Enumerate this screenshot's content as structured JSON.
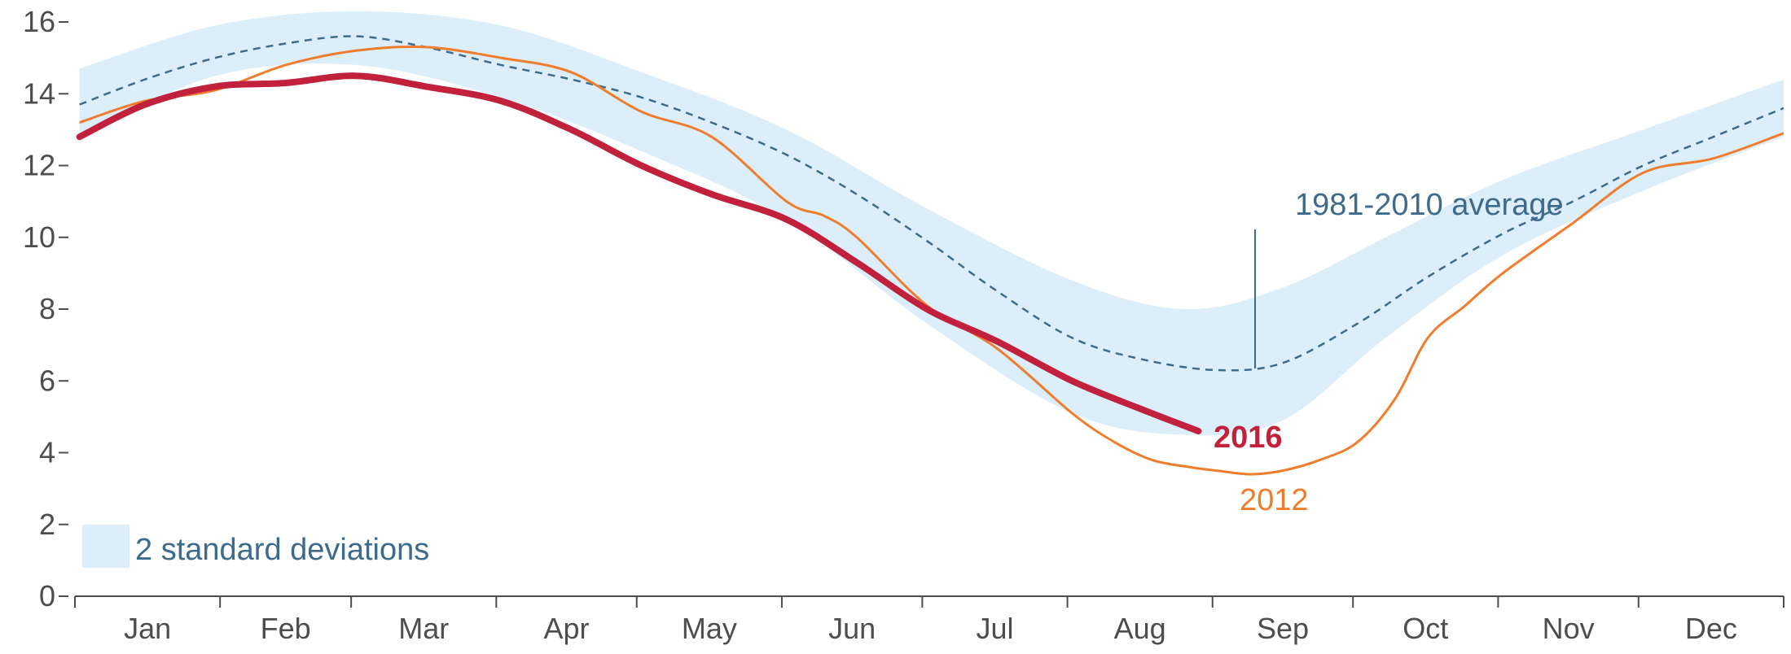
{
  "chart_data": {
    "type": "line",
    "title": "",
    "xlabel": "",
    "ylabel": "",
    "ylim": [
      0,
      16
    ],
    "yticks": [
      0,
      2,
      4,
      6,
      8,
      10,
      12,
      14,
      16
    ],
    "months": [
      "Jan",
      "Feb",
      "Mar",
      "Apr",
      "May",
      "Jun",
      "Jul",
      "Aug",
      "Sep",
      "Oct",
      "Nov",
      "Dec"
    ],
    "grid": false,
    "colors": {
      "series_2016": "#c1213c",
      "series_2012": "#ef7d2d",
      "average": "#3d6b8c",
      "band": "#dbeefa",
      "axis": "#4d4d4d"
    },
    "band_label": "2 standard deviations",
    "band": {
      "x": [
        1,
        30,
        60,
        91,
        121,
        152,
        182,
        213,
        237,
        258,
        280,
        305,
        335,
        365
      ],
      "upper": [
        14.7,
        15.9,
        16.3,
        15.9,
        14.6,
        13.0,
        10.8,
        8.8,
        8.0,
        8.6,
        10.0,
        11.6,
        13.0,
        14.4
      ],
      "lower": [
        12.8,
        14.5,
        14.8,
        13.9,
        12.4,
        10.5,
        7.6,
        5.1,
        4.5,
        4.9,
        7.2,
        9.5,
        11.3,
        12.8
      ]
    },
    "series": [
      {
        "name": "1981-2010 average",
        "style": "dashed",
        "x": [
          1,
          15,
          30,
          45,
          60,
          75,
          91,
          106,
          121,
          136,
          152,
          167,
          182,
          197,
          213,
          228,
          244,
          258,
          274,
          289,
          305,
          320,
          335,
          350,
          365
        ],
        "y": [
          13.7,
          14.4,
          15.0,
          15.4,
          15.6,
          15.3,
          14.8,
          14.4,
          13.9,
          13.2,
          12.3,
          11.2,
          9.9,
          8.5,
          7.2,
          6.6,
          6.3,
          6.5,
          7.6,
          8.9,
          10.1,
          11.0,
          12.0,
          12.8,
          13.6
        ]
      },
      {
        "name": "2012",
        "style": "thin",
        "x": [
          1,
          15,
          30,
          45,
          60,
          75,
          91,
          106,
          121,
          136,
          152,
          160,
          167,
          182,
          197,
          213,
          222,
          230,
          238,
          244,
          251,
          258,
          266,
          274,
          282,
          289,
          297,
          305,
          320,
          335,
          350,
          365
        ],
        "y": [
          13.2,
          13.8,
          14.1,
          14.8,
          15.2,
          15.3,
          15.0,
          14.6,
          13.5,
          12.8,
          11.0,
          10.6,
          10.0,
          8.1,
          6.9,
          5.1,
          4.3,
          3.8,
          3.6,
          3.5,
          3.4,
          3.5,
          3.8,
          4.3,
          5.5,
          7.2,
          8.1,
          9.0,
          10.4,
          11.8,
          12.2,
          12.9
        ]
      },
      {
        "name": "2016",
        "style": "thick",
        "x": [
          1,
          15,
          30,
          45,
          60,
          75,
          91,
          106,
          121,
          136,
          152,
          167,
          182,
          197,
          213,
          228,
          240
        ],
        "y": [
          12.8,
          13.7,
          14.2,
          14.3,
          14.5,
          14.2,
          13.8,
          13.0,
          12.0,
          11.2,
          10.5,
          9.3,
          8.0,
          7.1,
          6.0,
          5.2,
          4.6
        ]
      }
    ],
    "annotations": {
      "average_label": "1981-2010 average",
      "label_2016": "2016",
      "label_2012": "2012"
    }
  }
}
